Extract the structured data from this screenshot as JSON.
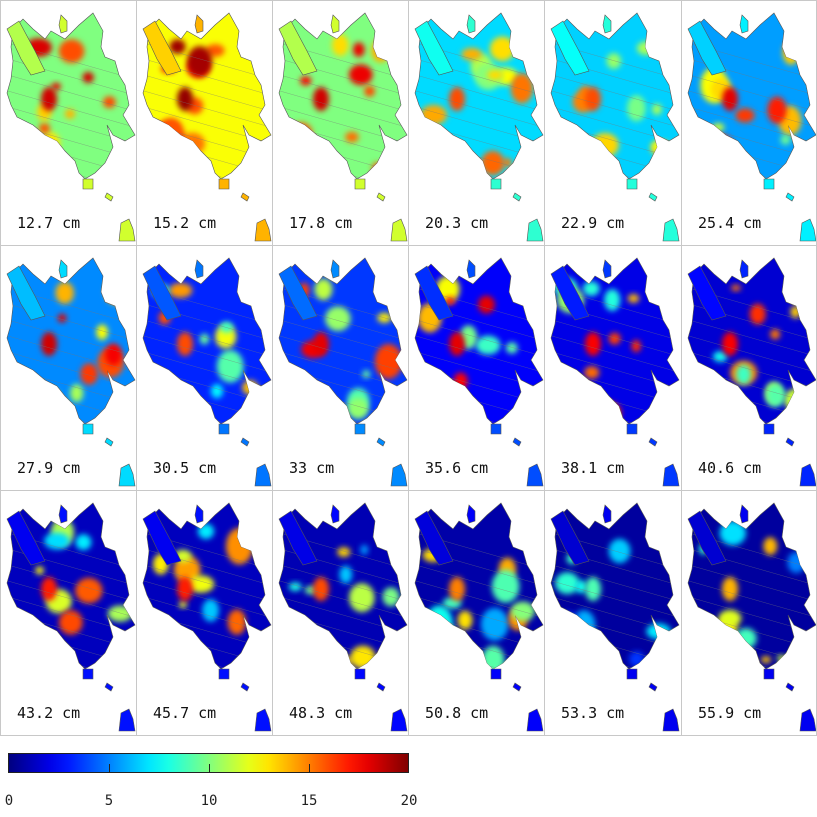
{
  "panels": [
    {
      "depth_label": "12.7 cm",
      "mean_level": 0.5,
      "hotspot_level": 0.92
    },
    {
      "depth_label": "15.2 cm",
      "mean_level": 0.62,
      "hotspot_level": 0.98
    },
    {
      "depth_label": "17.8 cm",
      "mean_level": 0.5,
      "hotspot_level": 0.92
    },
    {
      "depth_label": "20.3 cm",
      "mean_level": 0.34,
      "hotspot_level": 0.8
    },
    {
      "depth_label": "22.9 cm",
      "mean_level": 0.33,
      "hotspot_level": 0.8
    },
    {
      "depth_label": "25.4 cm",
      "mean_level": 0.28,
      "hotspot_level": 0.9
    },
    {
      "depth_label": "27.9 cm",
      "mean_level": 0.26,
      "hotspot_level": 0.92
    },
    {
      "depth_label": "30.5 cm",
      "mean_level": 0.16,
      "hotspot_level": 0.8
    },
    {
      "depth_label": "33 cm",
      "mean_level": 0.18,
      "hotspot_level": 0.9
    },
    {
      "depth_label": "35.6 cm",
      "mean_level": 0.12,
      "hotspot_level": 0.9
    },
    {
      "depth_label": "38.1 cm",
      "mean_level": 0.1,
      "hotspot_level": 0.88
    },
    {
      "depth_label": "40.6 cm",
      "mean_level": 0.08,
      "hotspot_level": 0.88
    },
    {
      "depth_label": "43.2 cm",
      "mean_level": 0.06,
      "hotspot_level": 0.85
    },
    {
      "depth_label": "45.7 cm",
      "mean_level": 0.06,
      "hotspot_level": 0.85
    },
    {
      "depth_label": "48.3 cm",
      "mean_level": 0.05,
      "hotspot_level": 0.8
    },
    {
      "depth_label": "50.8 cm",
      "mean_level": 0.04,
      "hotspot_level": 0.75
    },
    {
      "depth_label": "53.3 cm",
      "mean_level": 0.03,
      "hotspot_level": 0.45
    },
    {
      "depth_label": "55.9 cm",
      "mean_level": 0.03,
      "hotspot_level": 0.7
    }
  ],
  "colorbar": {
    "colormap": "jet",
    "min": 0,
    "max": 20,
    "tick_labels": [
      "0",
      "5",
      "10",
      "15",
      "20"
    ]
  }
}
